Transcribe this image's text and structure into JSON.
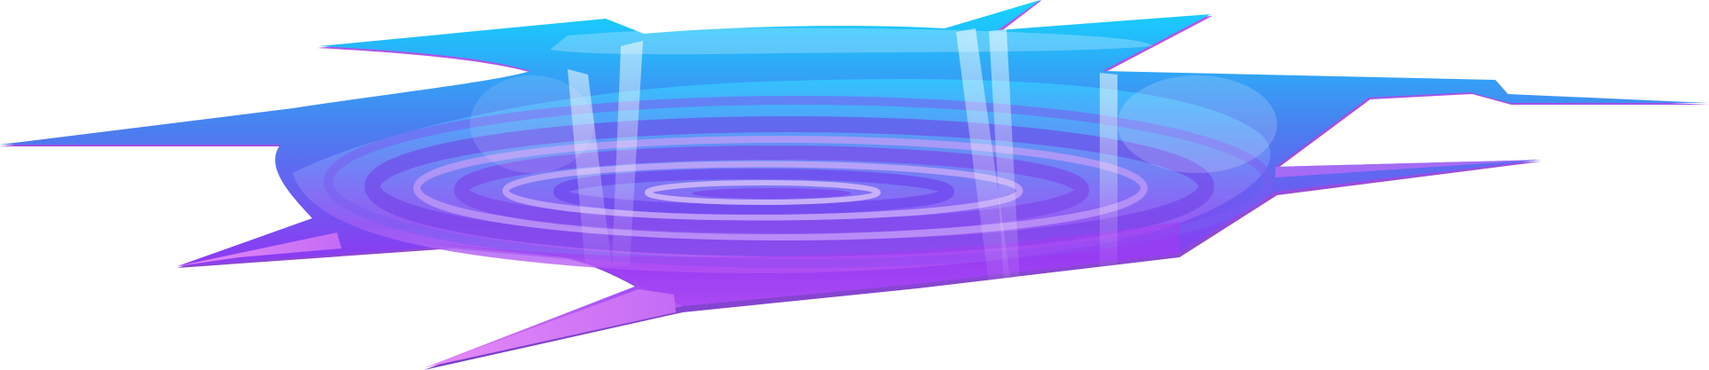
{
  "illustration": {
    "subject": "hole-illustration",
    "colors": {
      "background": "#ffffff",
      "top_cyan": "#12d6ff",
      "mid_blue": "#4a7ff0",
      "deep_violet": "#8a3cf2",
      "bottom_magenta": "#b33cf5",
      "rim_pink": "#e07cf6",
      "highlight_white": "#ffffff"
    },
    "elements": [
      "cracked-rim",
      "swirl-rings",
      "light-shafts",
      "shards"
    ]
  }
}
